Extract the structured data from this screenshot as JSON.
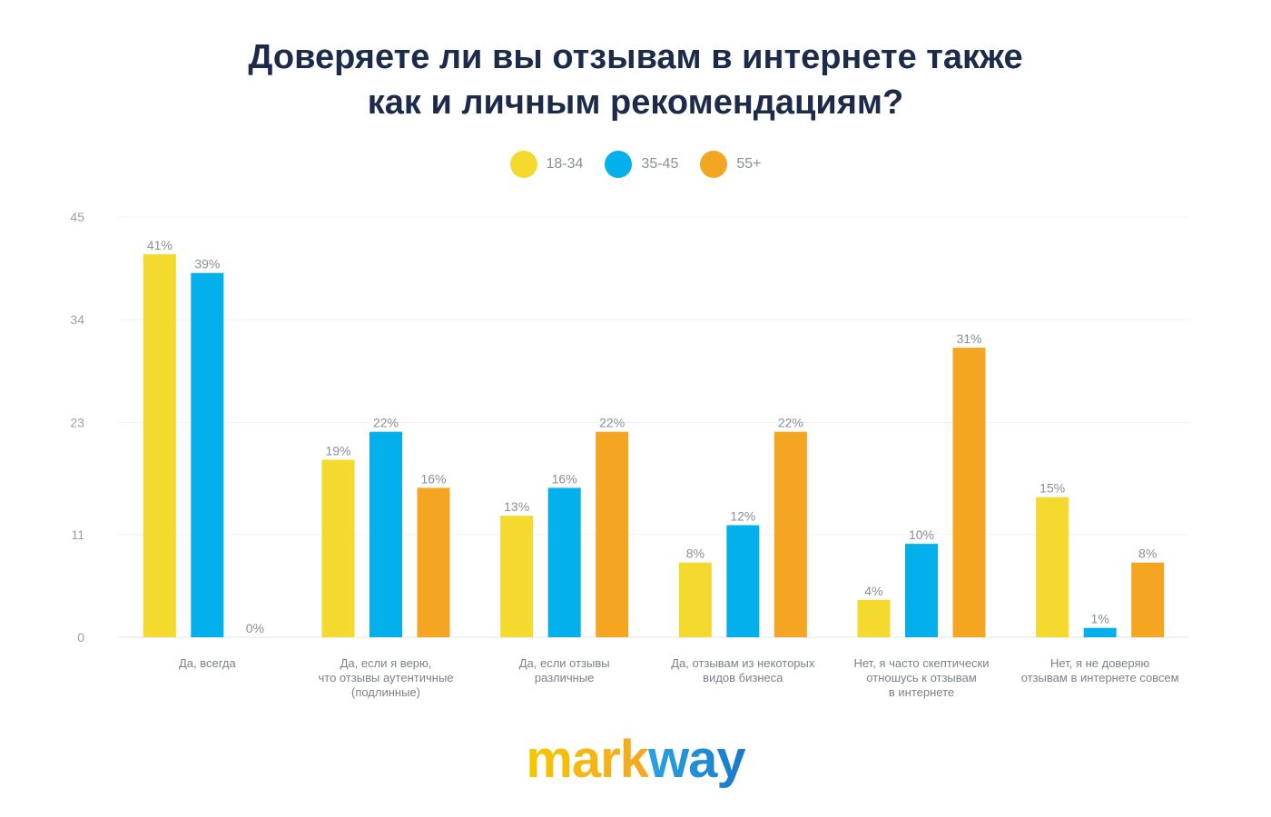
{
  "title_line1": "Доверяете ли вы отзывам в интернете также",
  "title_line2": "как и личным рекомендациям?",
  "logo": {
    "part1": "mark",
    "part2": "way"
  },
  "chart_data": {
    "type": "bar",
    "title": "Доверяете ли вы отзывам в интернете также как и личным рекомендациям?",
    "legend_position": "top-center",
    "grid": true,
    "ylim": [
      0,
      45
    ],
    "yticks": [
      "0",
      "11",
      "23",
      "34",
      "45"
    ],
    "categories": [
      [
        "Да, всегда"
      ],
      [
        "Да, если я верю,",
        "что отзывы аутентичные",
        "(подлинные)"
      ],
      [
        "Да, если отзывы",
        "различные"
      ],
      [
        "Да, отзывам из некоторых",
        "видов бизнеса"
      ],
      [
        "Нет, я часто скептически",
        "отношусь к отзывам",
        "в интернете"
      ],
      [
        "Нет, я не доверяю",
        "отзывам в интернете совсем"
      ]
    ],
    "series": [
      {
        "name": "18-34",
        "color": "#f4d92e",
        "values": [
          41,
          19,
          13,
          8,
          4,
          15
        ],
        "labels": [
          "41%",
          "19%",
          "13%",
          "8%",
          "4%",
          "15%"
        ]
      },
      {
        "name": "35-45",
        "color": "#03b0ec",
        "values": [
          39,
          22,
          16,
          12,
          10,
          1
        ],
        "labels": [
          "39%",
          "22%",
          "16%",
          "12%",
          "10%",
          "1%"
        ]
      },
      {
        "name": "55+",
        "color": "#f4a623",
        "values": [
          0,
          16,
          22,
          22,
          31,
          8
        ],
        "labels": [
          "0%",
          "16%",
          "22%",
          "22%",
          "31%",
          "8%"
        ]
      }
    ]
  }
}
